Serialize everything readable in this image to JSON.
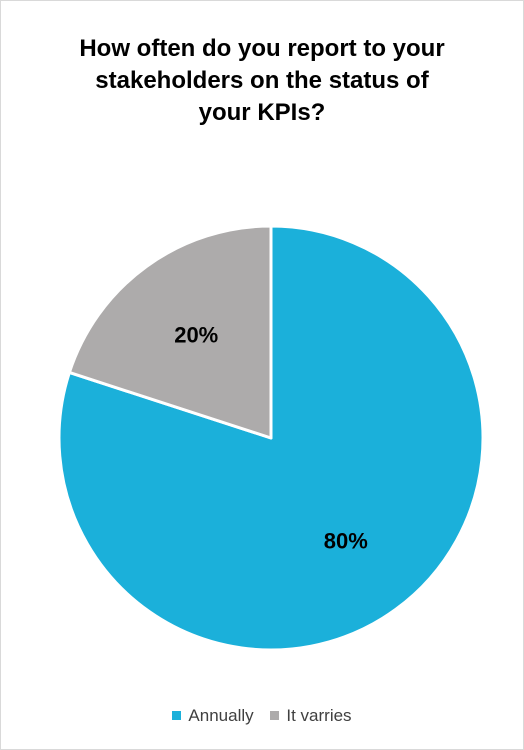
{
  "chart_data": {
    "type": "pie",
    "title_lines": [
      "How often do you report to your",
      "stakeholders on the status of",
      "your KPIs?"
    ],
    "categories": [
      "Annually",
      "It varries"
    ],
    "values": [
      80,
      20
    ],
    "data_labels": [
      "80%",
      "20%"
    ],
    "colors": [
      "#1BB0DA",
      "#ADABAB"
    ],
    "legend_position": "bottom",
    "start_angle": "12 o'clock",
    "direction": "clockwise"
  }
}
